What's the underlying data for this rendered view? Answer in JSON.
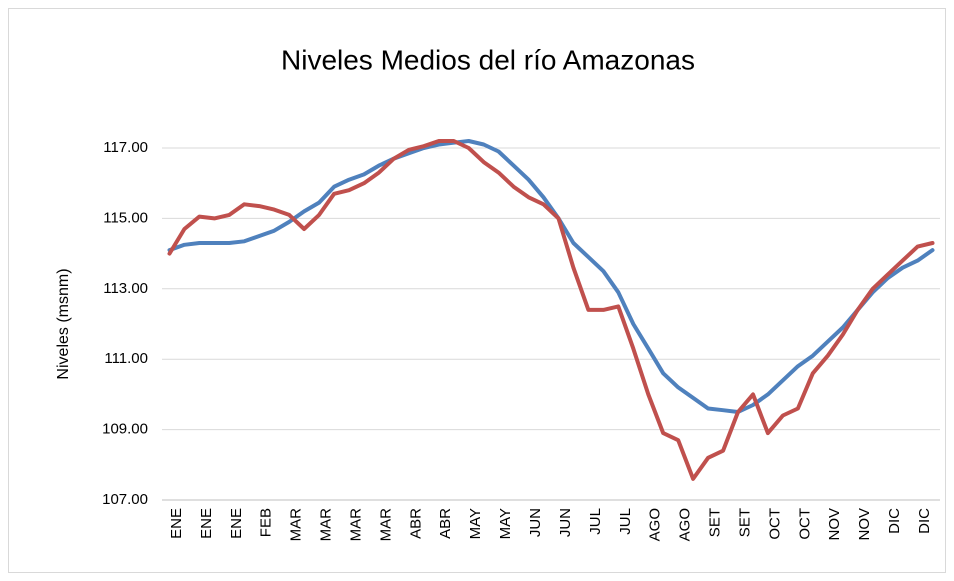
{
  "chart_data": {
    "type": "line",
    "title": "Niveles Medios del río Amazonas",
    "y_label": "Niveles (msnm)",
    "categories": [
      "ENE",
      null,
      "ENE",
      null,
      "ENE",
      null,
      "FEB",
      null,
      "MAR",
      null,
      "MAR",
      null,
      "MAR",
      null,
      "MAR",
      null,
      "ABR",
      null,
      "ABR",
      null,
      "MAY",
      null,
      "MAY",
      null,
      "JUN",
      null,
      "JUN",
      null,
      "JUL",
      null,
      "JUL",
      null,
      "AGO",
      null,
      "AGO",
      null,
      "SET",
      null,
      "SET",
      null,
      "OCT",
      null,
      "OCT",
      null,
      "NOV",
      null,
      "NOV",
      null,
      "DIC",
      null,
      "DIC",
      null
    ],
    "series": [
      {
        "color": "#4f81bd",
        "values": [
          114.1,
          114.25,
          114.3,
          114.3,
          114.3,
          114.35,
          114.5,
          114.65,
          114.9,
          115.2,
          115.45,
          115.9,
          116.1,
          116.25,
          116.5,
          116.7,
          116.85,
          117.0,
          117.1,
          117.15,
          117.2,
          117.1,
          116.9,
          116.5,
          116.1,
          115.6,
          115.0,
          114.3,
          113.9,
          113.5,
          112.9,
          112.0,
          111.3,
          110.6,
          110.2,
          109.9,
          109.6,
          109.55,
          109.5,
          109.7,
          110.0,
          110.4,
          110.8,
          111.1,
          111.5,
          111.9,
          112.4,
          112.9,
          113.3,
          113.6,
          113.8,
          114.1
        ]
      },
      {
        "color": "#c0504d",
        "values": [
          114.0,
          114.7,
          115.05,
          115.0,
          115.1,
          115.4,
          115.35,
          115.25,
          115.1,
          114.7,
          115.1,
          115.7,
          115.8,
          116.0,
          116.3,
          116.7,
          116.95,
          117.05,
          117.2,
          117.2,
          117.0,
          116.6,
          116.3,
          115.9,
          115.6,
          115.4,
          115.0,
          113.6,
          112.4,
          112.4,
          112.5,
          111.3,
          110.0,
          108.9,
          108.7,
          107.6,
          108.2,
          108.4,
          109.5,
          110.0,
          108.9,
          109.4,
          109.6,
          110.6,
          111.1,
          111.7,
          112.4,
          113.0,
          113.4,
          113.8,
          114.2,
          114.3
        ]
      }
    ],
    "ylim": [
      107,
      118
    ],
    "yticks": [
      {
        "value": 107,
        "label": "107.00"
      },
      {
        "value": 109,
        "label": "109.00"
      },
      {
        "value": 111,
        "label": "111.00"
      },
      {
        "value": 113,
        "label": "113.00"
      },
      {
        "value": 115,
        "label": "115.00"
      },
      {
        "value": 117,
        "label": "117.00"
      }
    ],
    "grid": true
  }
}
